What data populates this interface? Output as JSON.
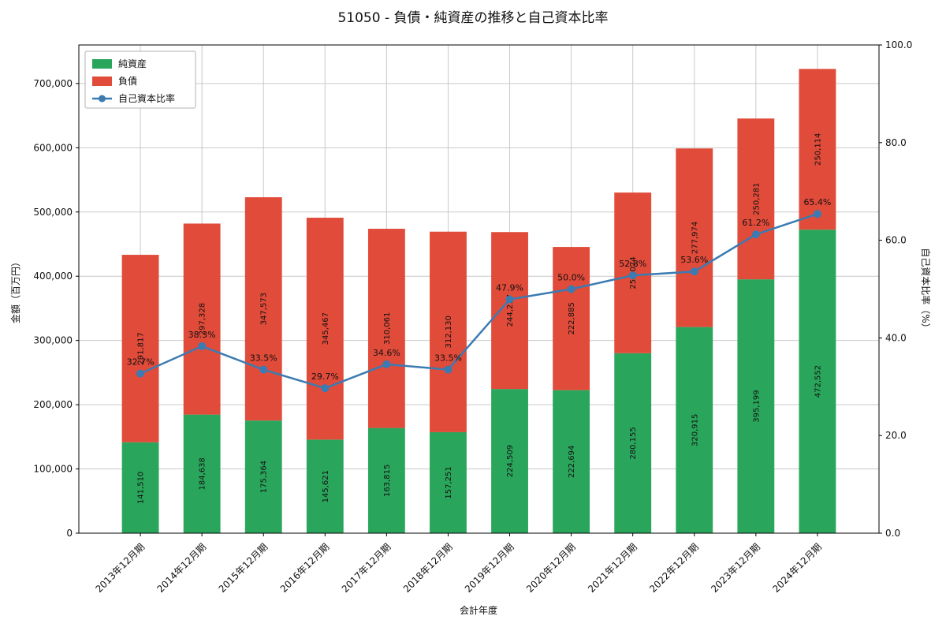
{
  "chart_data": {
    "type": "bar",
    "stacked": true,
    "title": "51050 - 負債・純資産の推移と自己資本比率",
    "xlabel": "会計年度",
    "ylabel_left": "金額（百万円）",
    "ylabel_right": "自己資本比率（%）",
    "categories": [
      "2013年12月期",
      "2014年12月期",
      "2015年12月期",
      "2016年12月期",
      "2017年12月期",
      "2018年12月期",
      "2019年12月期",
      "2020年12月期",
      "2021年12月期",
      "2022年12月期",
      "2023年12月期",
      "2024年12月期"
    ],
    "series": [
      {
        "name": "純資産",
        "color": "#2aa65c",
        "values": [
          141510,
          184638,
          175364,
          145621,
          163815,
          157251,
          224509,
          222694,
          280155,
          320915,
          395199,
          472552
        ]
      },
      {
        "name": "負債",
        "color": "#e14b3a",
        "values": [
          291817,
          297328,
          347573,
          345467,
          310061,
          312130,
          244217,
          222885,
          250074,
          277974,
          250281,
          250114
        ]
      }
    ],
    "line_series": {
      "name": "自己資本比率",
      "axis": "right",
      "color": "#3b7bb2",
      "label_color": "#6190c4",
      "values": [
        32.7,
        38.3,
        33.5,
        29.7,
        34.6,
        33.5,
        47.9,
        50.0,
        52.8,
        53.6,
        61.2,
        65.4
      ]
    },
    "ylim_left": [
      0,
      760000
    ],
    "yticks_left": [
      0,
      100000,
      200000,
      300000,
      400000,
      500000,
      600000,
      700000
    ],
    "ylim_right": [
      0,
      100
    ],
    "yticks_right": [
      0,
      20,
      40,
      60,
      80,
      100
    ],
    "grid": true,
    "legend_position": "upper left",
    "colors": {
      "grid": "#c9c9c9",
      "spine": "#000000",
      "background": "#ffffff",
      "legend_border": "#b3b3b3"
    }
  }
}
